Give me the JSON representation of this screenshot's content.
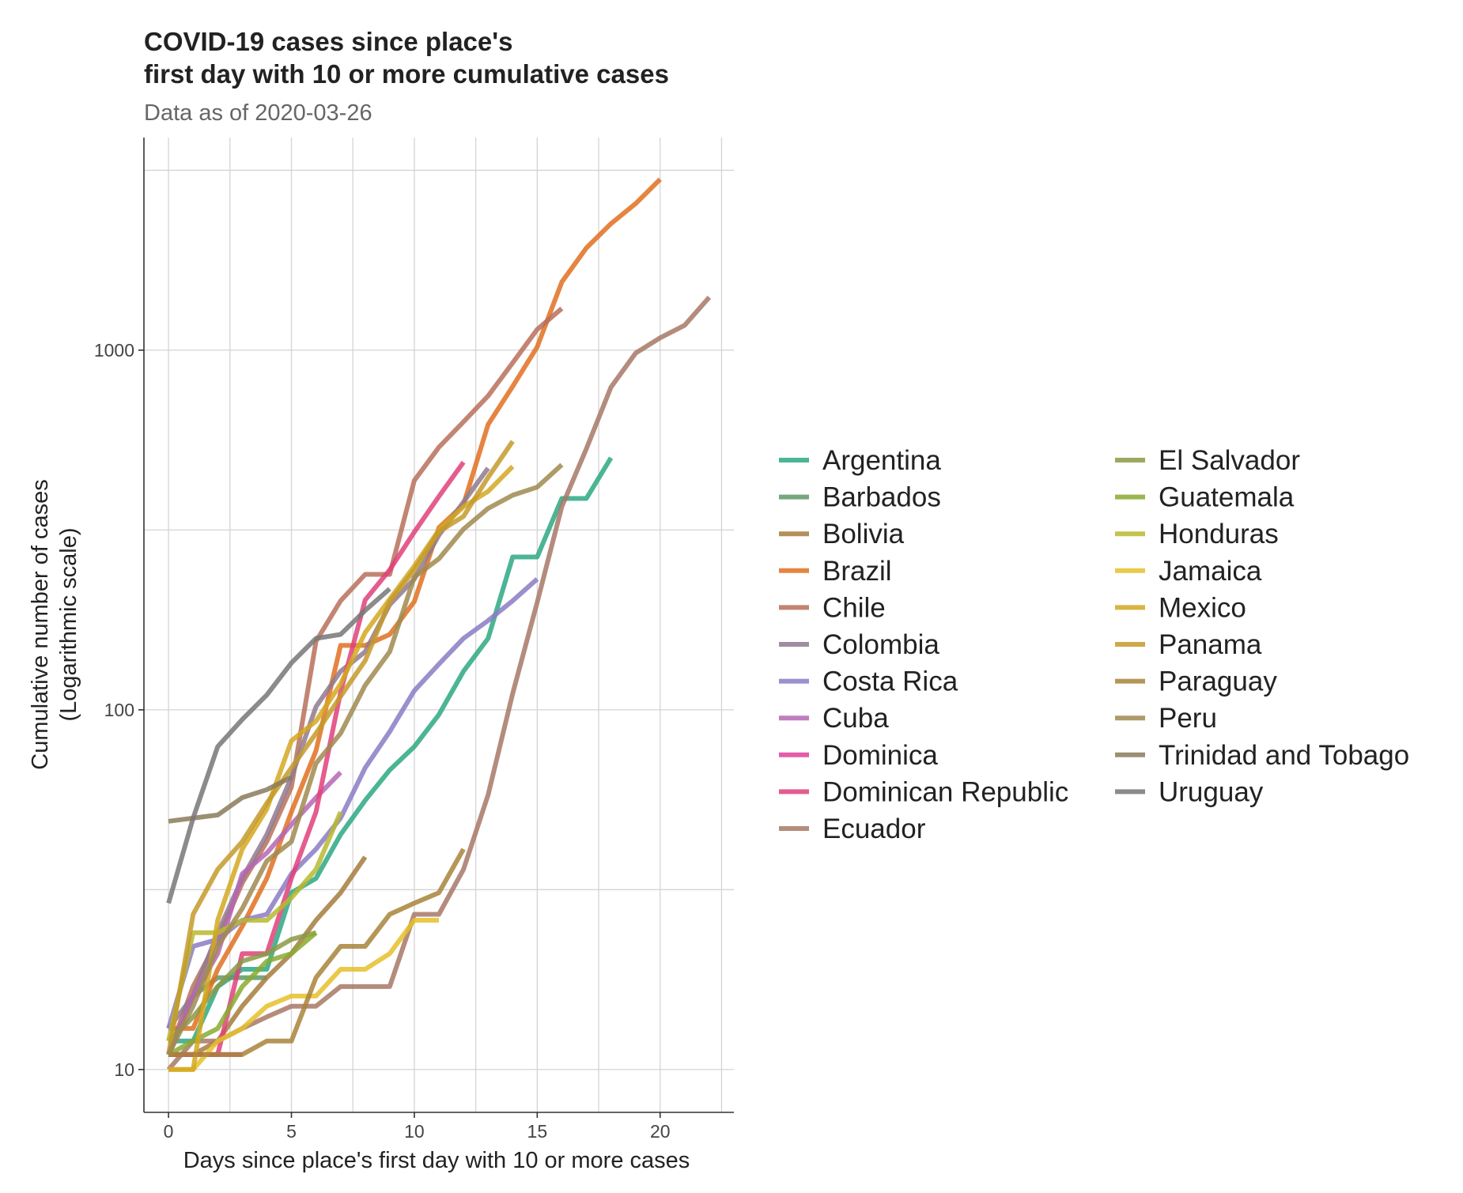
{
  "chart_data": {
    "type": "line",
    "title": "COVID-19 cases since place's",
    "title_line2": "first day with 10 or more cumulative cases",
    "subtitle": "Data as of 2020-03-26",
    "xlabel": "Days since place's first day with 10 or more cases",
    "ylabel": "Cumulative number of cases",
    "ylabel_line2": "(Logarithmic scale)",
    "y_scale": "log",
    "xlim": [
      -1,
      23
    ],
    "ylim": [
      7.6,
      3900
    ],
    "x_ticks": [
      0,
      5,
      10,
      15,
      20
    ],
    "y_ticks": [
      10,
      100,
      1000
    ],
    "y_tick_labels": [
      "10",
      "100",
      "1000"
    ],
    "grid": true,
    "legend_position": "right",
    "series": [
      {
        "name": "Argentina",
        "color": "#2ca883",
        "x": [
          0,
          1,
          2,
          3,
          4,
          5,
          6,
          7,
          8,
          9,
          10,
          11,
          12,
          13,
          14,
          15,
          16,
          17,
          18
        ],
        "y": [
          12,
          12,
          17,
          19,
          19,
          31,
          34,
          45,
          56,
          68,
          79,
          97,
          128,
          158,
          266,
          266,
          387,
          387,
          502
        ]
      },
      {
        "name": "Barbados",
        "color": "#5e9966",
        "x": [
          0,
          1,
          2,
          3,
          4
        ],
        "y": [
          11,
          16,
          18,
          18,
          18
        ]
      },
      {
        "name": "Bolivia",
        "color": "#a67c3d",
        "x": [
          0,
          1,
          2,
          3,
          4,
          5,
          6,
          7,
          8
        ],
        "y": [
          11,
          11,
          12,
          15,
          18,
          21,
          26,
          31,
          39
        ]
      },
      {
        "name": "Brazil",
        "color": "#e07020",
        "x": [
          0,
          1,
          2,
          3,
          4,
          5,
          6,
          7,
          8,
          9,
          10,
          11,
          12,
          13,
          14,
          15,
          16,
          17,
          18,
          19,
          20
        ],
        "y": [
          13,
          13,
          19,
          25,
          34,
          52,
          77,
          151,
          151,
          162,
          200,
          321,
          372,
          621,
          793,
          1021,
          1546,
          1924,
          2247,
          2554,
          2985
        ]
      },
      {
        "name": "Chile",
        "color": "#b8705a",
        "x": [
          0,
          1,
          2,
          3,
          4,
          5,
          6,
          7,
          8,
          9,
          10,
          11,
          12,
          13,
          14,
          15,
          16
        ],
        "y": [
          11,
          17,
          23,
          33,
          43,
          61,
          155,
          201,
          238,
          238,
          434,
          537,
          632,
          746,
          922,
          1142,
          1306
        ]
      },
      {
        "name": "Colombia",
        "color": "#8f7a8f",
        "x": [
          0,
          1,
          2,
          3,
          4,
          5,
          6,
          7,
          8,
          9,
          10,
          11,
          12,
          13
        ],
        "y": [
          13,
          16,
          24,
          34,
          45,
          65,
          102,
          128,
          145,
          196,
          231,
          306,
          378,
          470
        ]
      },
      {
        "name": "Costa Rica",
        "color": "#8b7bc4",
        "x": [
          0,
          1,
          2,
          3,
          4,
          5,
          6,
          7,
          8,
          9,
          10,
          11,
          12,
          13,
          14,
          15
        ],
        "y": [
          13,
          22,
          23,
          26,
          27,
          35,
          41,
          50,
          69,
          87,
          113,
          134,
          158,
          177,
          201,
          231
        ]
      },
      {
        "name": "Cuba",
        "color": "#b566b4",
        "x": [
          0,
          1,
          2,
          3,
          4,
          5,
          6,
          7
        ],
        "y": [
          11,
          16,
          21,
          35,
          40,
          48,
          57,
          67
        ]
      },
      {
        "name": "Dominica",
        "color": "#e0409a",
        "x": [
          0,
          1,
          2,
          3
        ],
        "y": [
          11,
          11,
          11,
          11
        ]
      },
      {
        "name": "Dominican Republic",
        "color": "#e0407a",
        "x": [
          0,
          1,
          2,
          3,
          4,
          5,
          6,
          7,
          8,
          9,
          10,
          11,
          12
        ],
        "y": [
          11,
          11,
          11,
          21,
          21,
          34,
          52,
          112,
          202,
          245,
          312,
          392,
          488
        ]
      },
      {
        "name": "Ecuador",
        "color": "#a77866",
        "x": [
          0,
          1,
          2,
          3,
          4,
          5,
          6,
          7,
          8,
          9,
          10,
          11,
          12,
          13,
          14,
          15,
          16,
          17,
          18,
          19,
          20,
          21,
          22
        ],
        "y": [
          10,
          12,
          12,
          13,
          14,
          15,
          15,
          17,
          17,
          17,
          27,
          27,
          36,
          58,
          111,
          199,
          367,
          532,
          789,
          981,
          1082,
          1173,
          1403
        ]
      },
      {
        "name": "El Salvador",
        "color": "#8a9a45",
        "x": [
          0,
          1,
          2,
          3,
          4,
          5,
          6
        ],
        "y": [
          12,
          14,
          17,
          20,
          21,
          23,
          24
        ]
      },
      {
        "name": "Guatemala",
        "color": "#8aaa30",
        "x": [
          0,
          1,
          2,
          3,
          4,
          5,
          6
        ],
        "y": [
          11,
          12,
          13,
          17,
          20,
          21,
          24
        ]
      },
      {
        "name": "Honduras",
        "color": "#b8b830",
        "x": [
          0,
          1,
          2,
          3,
          4,
          5,
          6,
          7
        ],
        "y": [
          12,
          24,
          24,
          26,
          26,
          30,
          36,
          52
        ]
      },
      {
        "name": "Jamaica",
        "color": "#e6c02a",
        "x": [
          0,
          1,
          2,
          3,
          4,
          5,
          6,
          7,
          8,
          9,
          10,
          11
        ],
        "y": [
          10,
          10,
          12,
          13,
          15,
          16,
          16,
          19,
          19,
          21,
          26,
          26
        ]
      },
      {
        "name": "Mexico",
        "color": "#d4a820",
        "x": [
          0,
          1,
          2,
          3,
          4,
          5,
          6,
          7,
          8,
          9,
          10,
          11,
          12,
          13,
          14
        ],
        "y": [
          10,
          10,
          26,
          41,
          53,
          82,
          93,
          118,
          164,
          203,
          251,
          316,
          367,
          405,
          475
        ]
      },
      {
        "name": "Panama",
        "color": "#c49a2a",
        "x": [
          0,
          1,
          2,
          3,
          4,
          5,
          6,
          7,
          8,
          9,
          10,
          11,
          12,
          13,
          14
        ],
        "y": [
          11,
          27,
          36,
          43,
          55,
          69,
          86,
          109,
          137,
          200,
          245,
          313,
          345,
          443,
          558
        ]
      },
      {
        "name": "Paraguay",
        "color": "#a8843a",
        "x": [
          0,
          1,
          2,
          3,
          4,
          5,
          6,
          7,
          8,
          9,
          10,
          11,
          12
        ],
        "y": [
          11,
          11,
          11,
          11,
          12,
          12,
          18,
          22,
          22,
          27,
          29,
          31,
          41
        ]
      },
      {
        "name": "Peru",
        "color": "#a08a50",
        "x": [
          0,
          1,
          2,
          3,
          4,
          5,
          6,
          7,
          8,
          9,
          10,
          11,
          12,
          13,
          14,
          15,
          16
        ],
        "y": [
          11,
          15,
          22,
          28,
          38,
          43,
          71,
          86,
          117,
          145,
          234,
          263,
          318,
          363,
          395,
          416,
          480
        ]
      },
      {
        "name": "Trinidad and Tobago",
        "color": "#8a7a5a",
        "x": [
          0,
          1,
          2,
          3,
          4,
          5
        ],
        "y": [
          49,
          50,
          51,
          57,
          60,
          65
        ]
      },
      {
        "name": "Uruguay",
        "color": "#777777",
        "x": [
          0,
          1,
          2,
          3,
          4,
          5,
          6,
          7,
          8,
          9
        ],
        "y": [
          29,
          50,
          79,
          94,
          110,
          135,
          158,
          162,
          189,
          217
        ]
      }
    ]
  }
}
